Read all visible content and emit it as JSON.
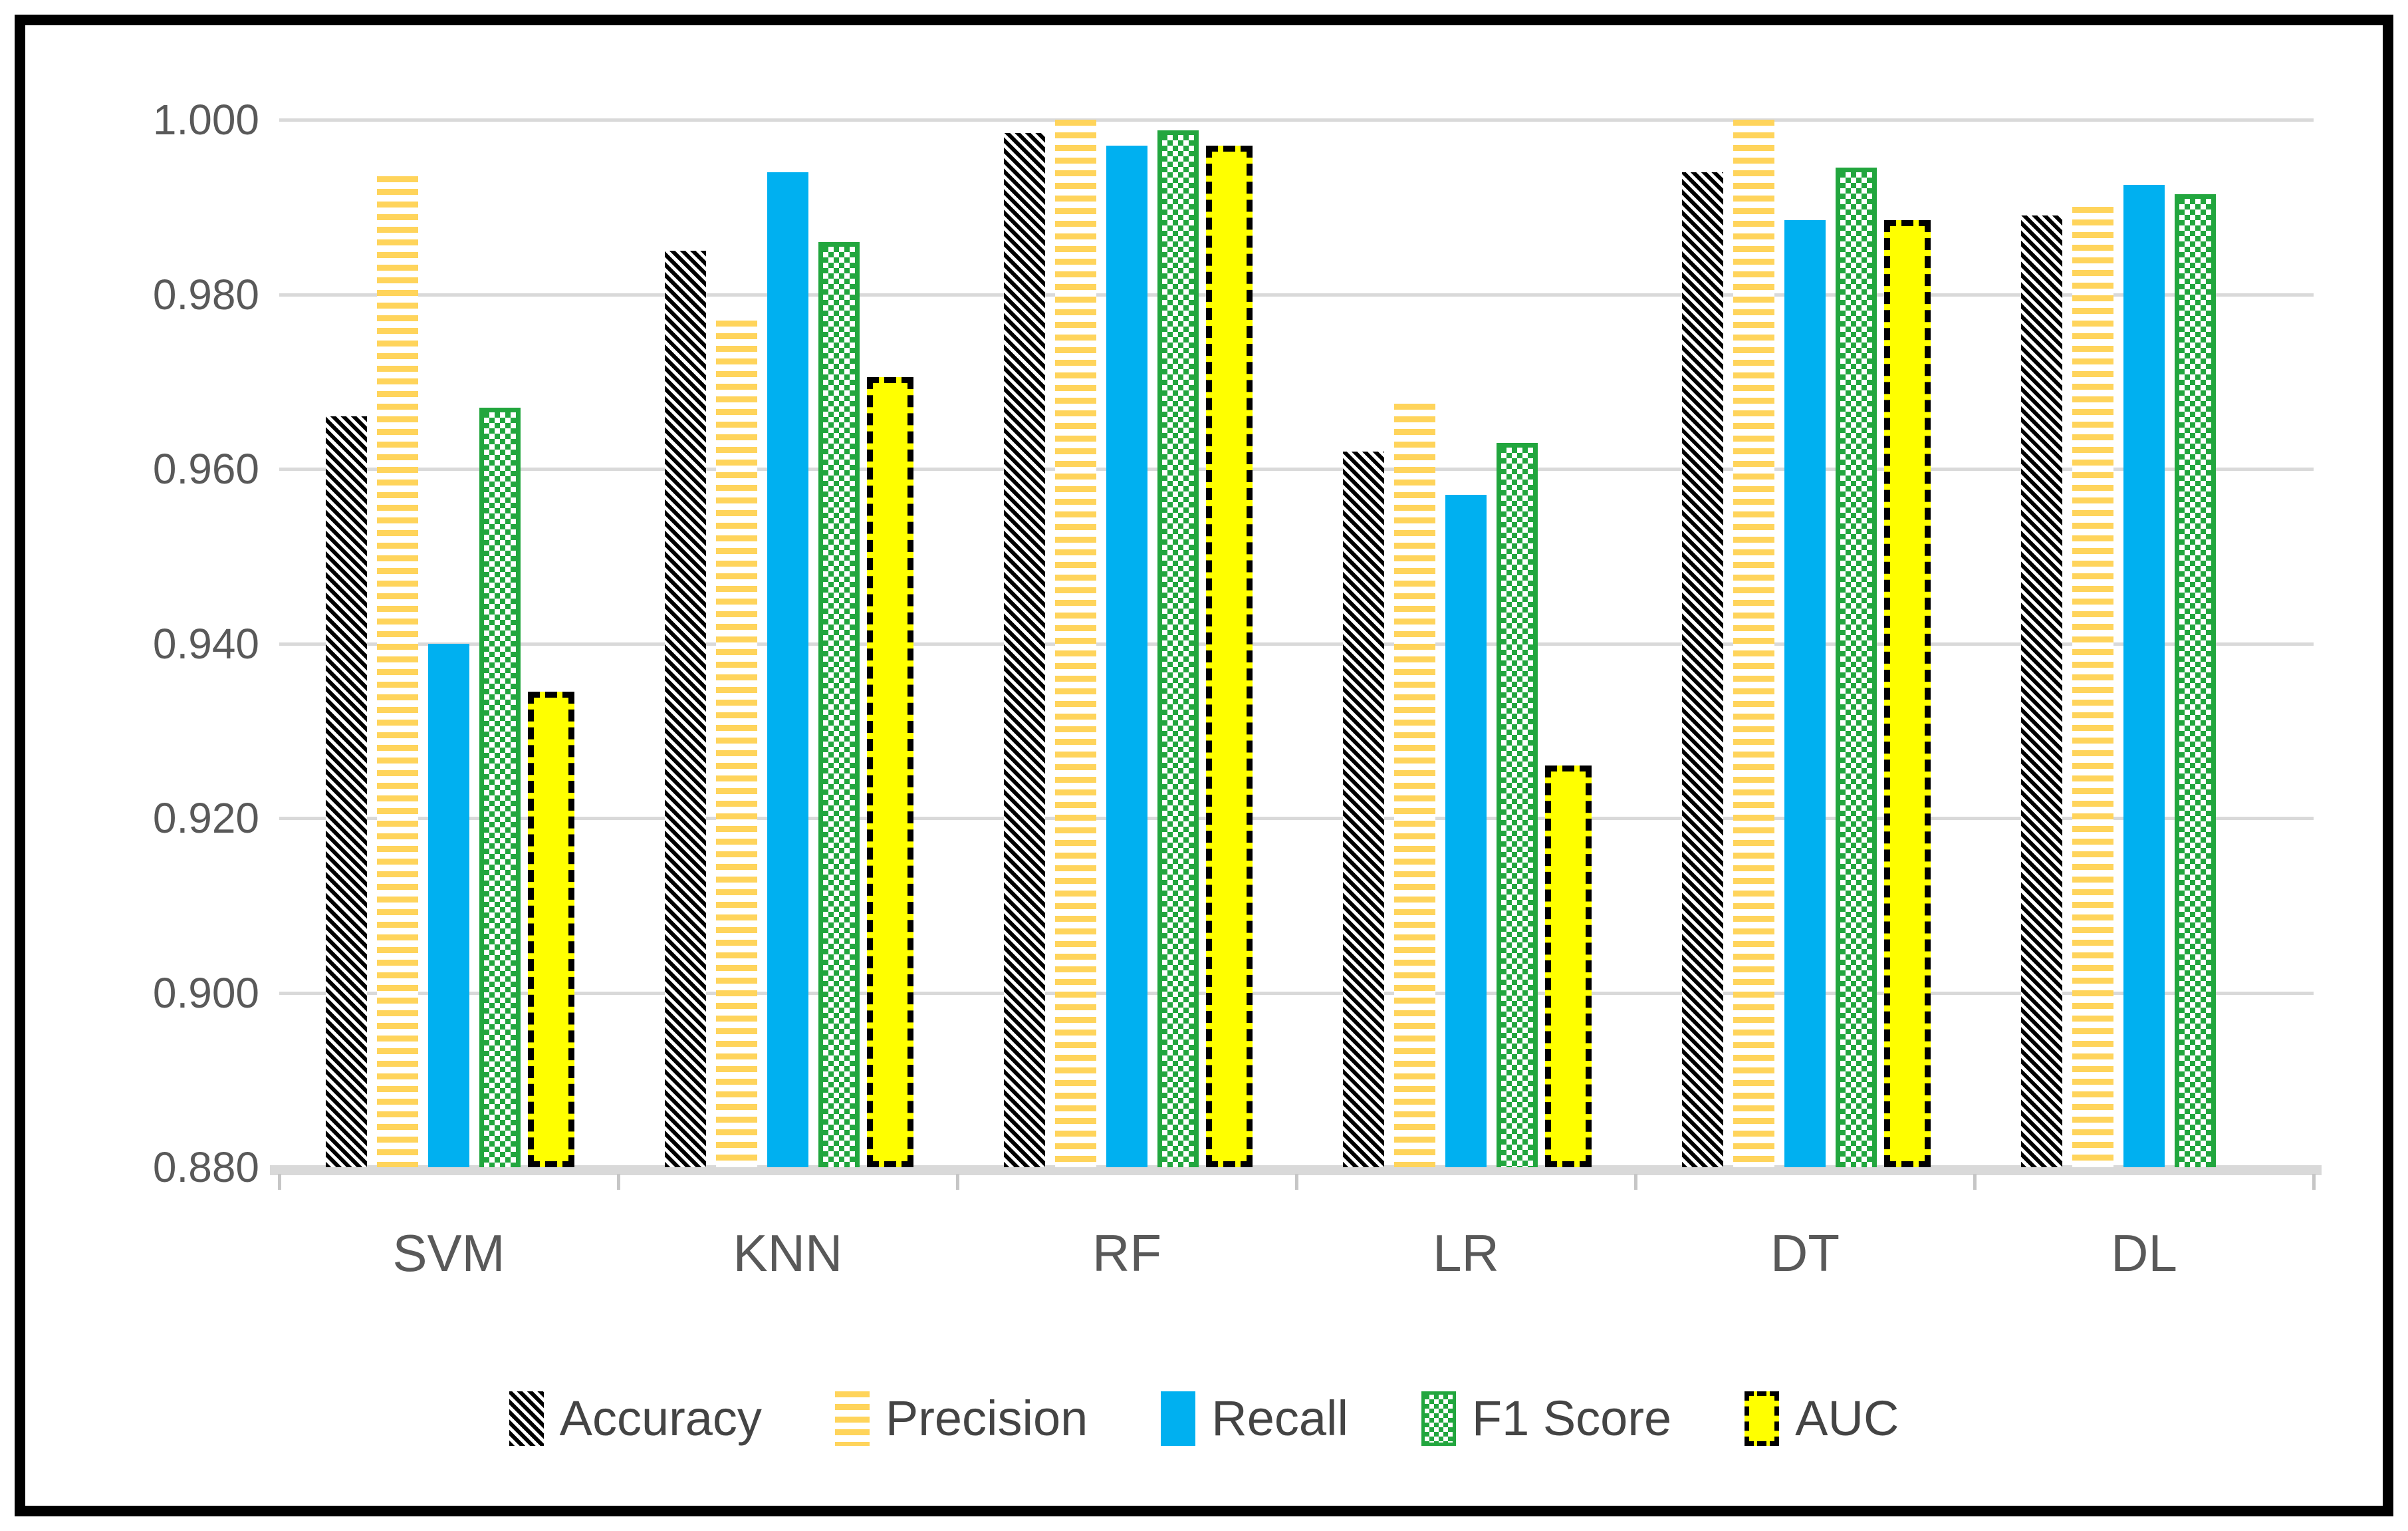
{
  "chart_data": {
    "type": "bar",
    "title": "",
    "xlabel": "",
    "ylabel": "",
    "categories": [
      "SVM",
      "KNN",
      "RF",
      "LR",
      "DT",
      "DL"
    ],
    "series": [
      {
        "name": "Accuracy",
        "pattern": "accuracy",
        "swatch": "black-diagonal-hatch",
        "values": [
          0.966,
          0.985,
          0.9985,
          0.962,
          0.994,
          0.989
        ]
      },
      {
        "name": "Precision",
        "pattern": "precision",
        "swatch": "yellow-horizontal-stripes",
        "values": [
          0.9935,
          0.977,
          1.0,
          0.9675,
          1.0,
          0.99
        ]
      },
      {
        "name": "Recall",
        "pattern": "recall",
        "swatch": "solid-blue",
        "values": [
          0.94,
          0.994,
          0.997,
          0.957,
          0.9885,
          0.9925
        ]
      },
      {
        "name": "F1 Score",
        "pattern": "f1",
        "swatch": "green-checkerboard",
        "values": [
          0.967,
          0.986,
          0.9988,
          0.963,
          0.9945,
          0.9915
        ]
      },
      {
        "name": "AUC",
        "pattern": "auc",
        "swatch": "yellow-black-dashed-border",
        "values": [
          0.9345,
          0.9705,
          0.997,
          0.926,
          0.9885,
          null
        ]
      }
    ],
    "ylim": [
      0.88,
      1.0
    ],
    "ytick_step": 0.02,
    "yticks": [
      "1.000",
      "0.980",
      "0.960",
      "0.940",
      "0.920",
      "0.900",
      "0.880"
    ],
    "grid": true,
    "legend_position": "bottom"
  },
  "colors": {
    "figure_border": "#000000",
    "background": "#FFFFFF",
    "gridline": "#D9D9D9",
    "axis_line": "#D9D9D9",
    "tick_mark": "#C6C6C6",
    "axis_text": "#595959",
    "legend_text": "#444444",
    "accuracy_black": "#000000",
    "precision_yellow": "#FFD45B",
    "recall_blue": "#00B0F0",
    "f1_green": "#22A63E",
    "auc_yellow": "#FFFF00"
  }
}
